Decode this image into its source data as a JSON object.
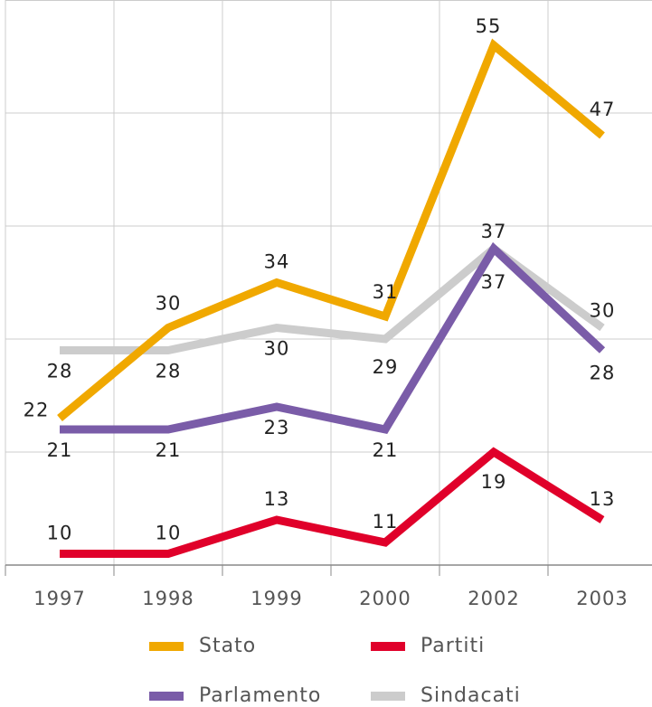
{
  "chart_data": {
    "type": "line",
    "categories": [
      "1997",
      "1998",
      "1999",
      "2000",
      "2002",
      "2003"
    ],
    "series": [
      {
        "name": "Stato",
        "color": "#f0a800",
        "values": [
          22,
          30,
          34,
          31,
          55,
          47
        ]
      },
      {
        "name": "Partiti",
        "color": "#e0002a",
        "values": [
          10,
          10,
          13,
          11,
          19,
          13
        ]
      },
      {
        "name": "Parlamento",
        "color": "#7a5ca8",
        "values": [
          21,
          21,
          23,
          21,
          37,
          28
        ]
      },
      {
        "name": "Sindacati",
        "color": "#cccccc",
        "values": [
          28,
          28,
          30,
          29,
          37,
          30
        ]
      }
    ],
    "ylim": [
      9,
      59
    ],
    "yticks": [
      19,
      29,
      39,
      49
    ],
    "grid": true
  }
}
